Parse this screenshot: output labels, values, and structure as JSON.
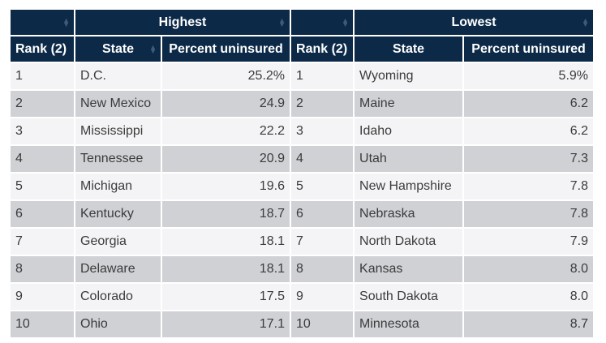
{
  "groups": {
    "highest": "Highest",
    "lowest": "Lowest"
  },
  "columns": {
    "rank": "Rank (2)",
    "state": "State",
    "percent": "Percent uninsured"
  },
  "rows": [
    {
      "h_rank": "1",
      "h_state": "D.C.",
      "h_pct": "25.2%",
      "l_rank": "1",
      "l_state": "Wyoming",
      "l_pct": "5.9%"
    },
    {
      "h_rank": "2",
      "h_state": "New Mexico",
      "h_pct": "24.9",
      "l_rank": "2",
      "l_state": "Maine",
      "l_pct": "6.2"
    },
    {
      "h_rank": "3",
      "h_state": "Mississippi",
      "h_pct": "22.2",
      "l_rank": "3",
      "l_state": "Idaho",
      "l_pct": "6.2"
    },
    {
      "h_rank": "4",
      "h_state": "Tennessee",
      "h_pct": "20.9",
      "l_rank": "4",
      "l_state": "Utah",
      "l_pct": "7.3"
    },
    {
      "h_rank": "5",
      "h_state": "Michigan",
      "h_pct": "19.6",
      "l_rank": "5",
      "l_state": "New Hampshire",
      "l_pct": "7.8"
    },
    {
      "h_rank": "6",
      "h_state": "Kentucky",
      "h_pct": "18.7",
      "l_rank": "6",
      "l_state": "Nebraska",
      "l_pct": "7.8"
    },
    {
      "h_rank": "7",
      "h_state": "Georgia",
      "h_pct": "18.1",
      "l_rank": "7",
      "l_state": "North Dakota",
      "l_pct": "7.9"
    },
    {
      "h_rank": "8",
      "h_state": "Delaware",
      "h_pct": "18.1",
      "l_rank": "8",
      "l_state": "Kansas",
      "l_pct": "8.0"
    },
    {
      "h_rank": "9",
      "h_state": "Colorado",
      "h_pct": "17.5",
      "l_rank": "9",
      "l_state": "South Dakota",
      "l_pct": "8.0"
    },
    {
      "h_rank": "10",
      "h_state": "Ohio",
      "h_pct": "17.1",
      "l_rank": "10",
      "l_state": "Minnesota",
      "l_pct": "8.7"
    }
  ],
  "icons": {
    "sort": "sort-arrows-icon"
  },
  "colors": {
    "header_bg": "#0c2a48",
    "row_light": "#f4f4f6",
    "row_dark": "#cfd1d5"
  }
}
